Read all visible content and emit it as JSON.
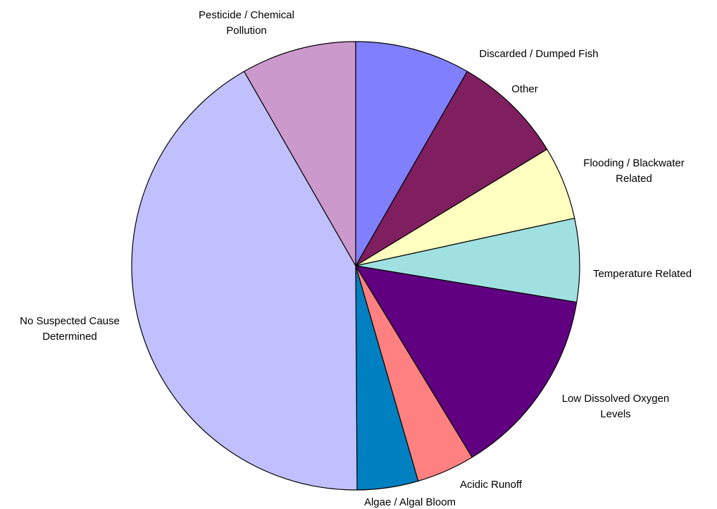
{
  "chart_data": {
    "type": "pie",
    "categories": [
      "Discarded / Dumped Fish",
      "Other",
      "Flooding / Blackwater Related",
      "Temperature Related",
      "Low Dissolved Oxygen Levels",
      "Acidic Runoff",
      "Algae / Algal Bloom",
      "No Suspected Cause Determined",
      "Pesticide / Chemical Pollution"
    ],
    "values": [
      8.3,
      8.0,
      5.3,
      6.0,
      13.7,
      4.2,
      4.4,
      41.8,
      8.3
    ],
    "colors": [
      "#8080ff",
      "#7f1f5f",
      "#ffffc0",
      "#a0e0e0",
      "#600080",
      "#ff8080",
      "#0080c0",
      "#c0c0ff",
      "#cc99cc"
    ]
  }
}
